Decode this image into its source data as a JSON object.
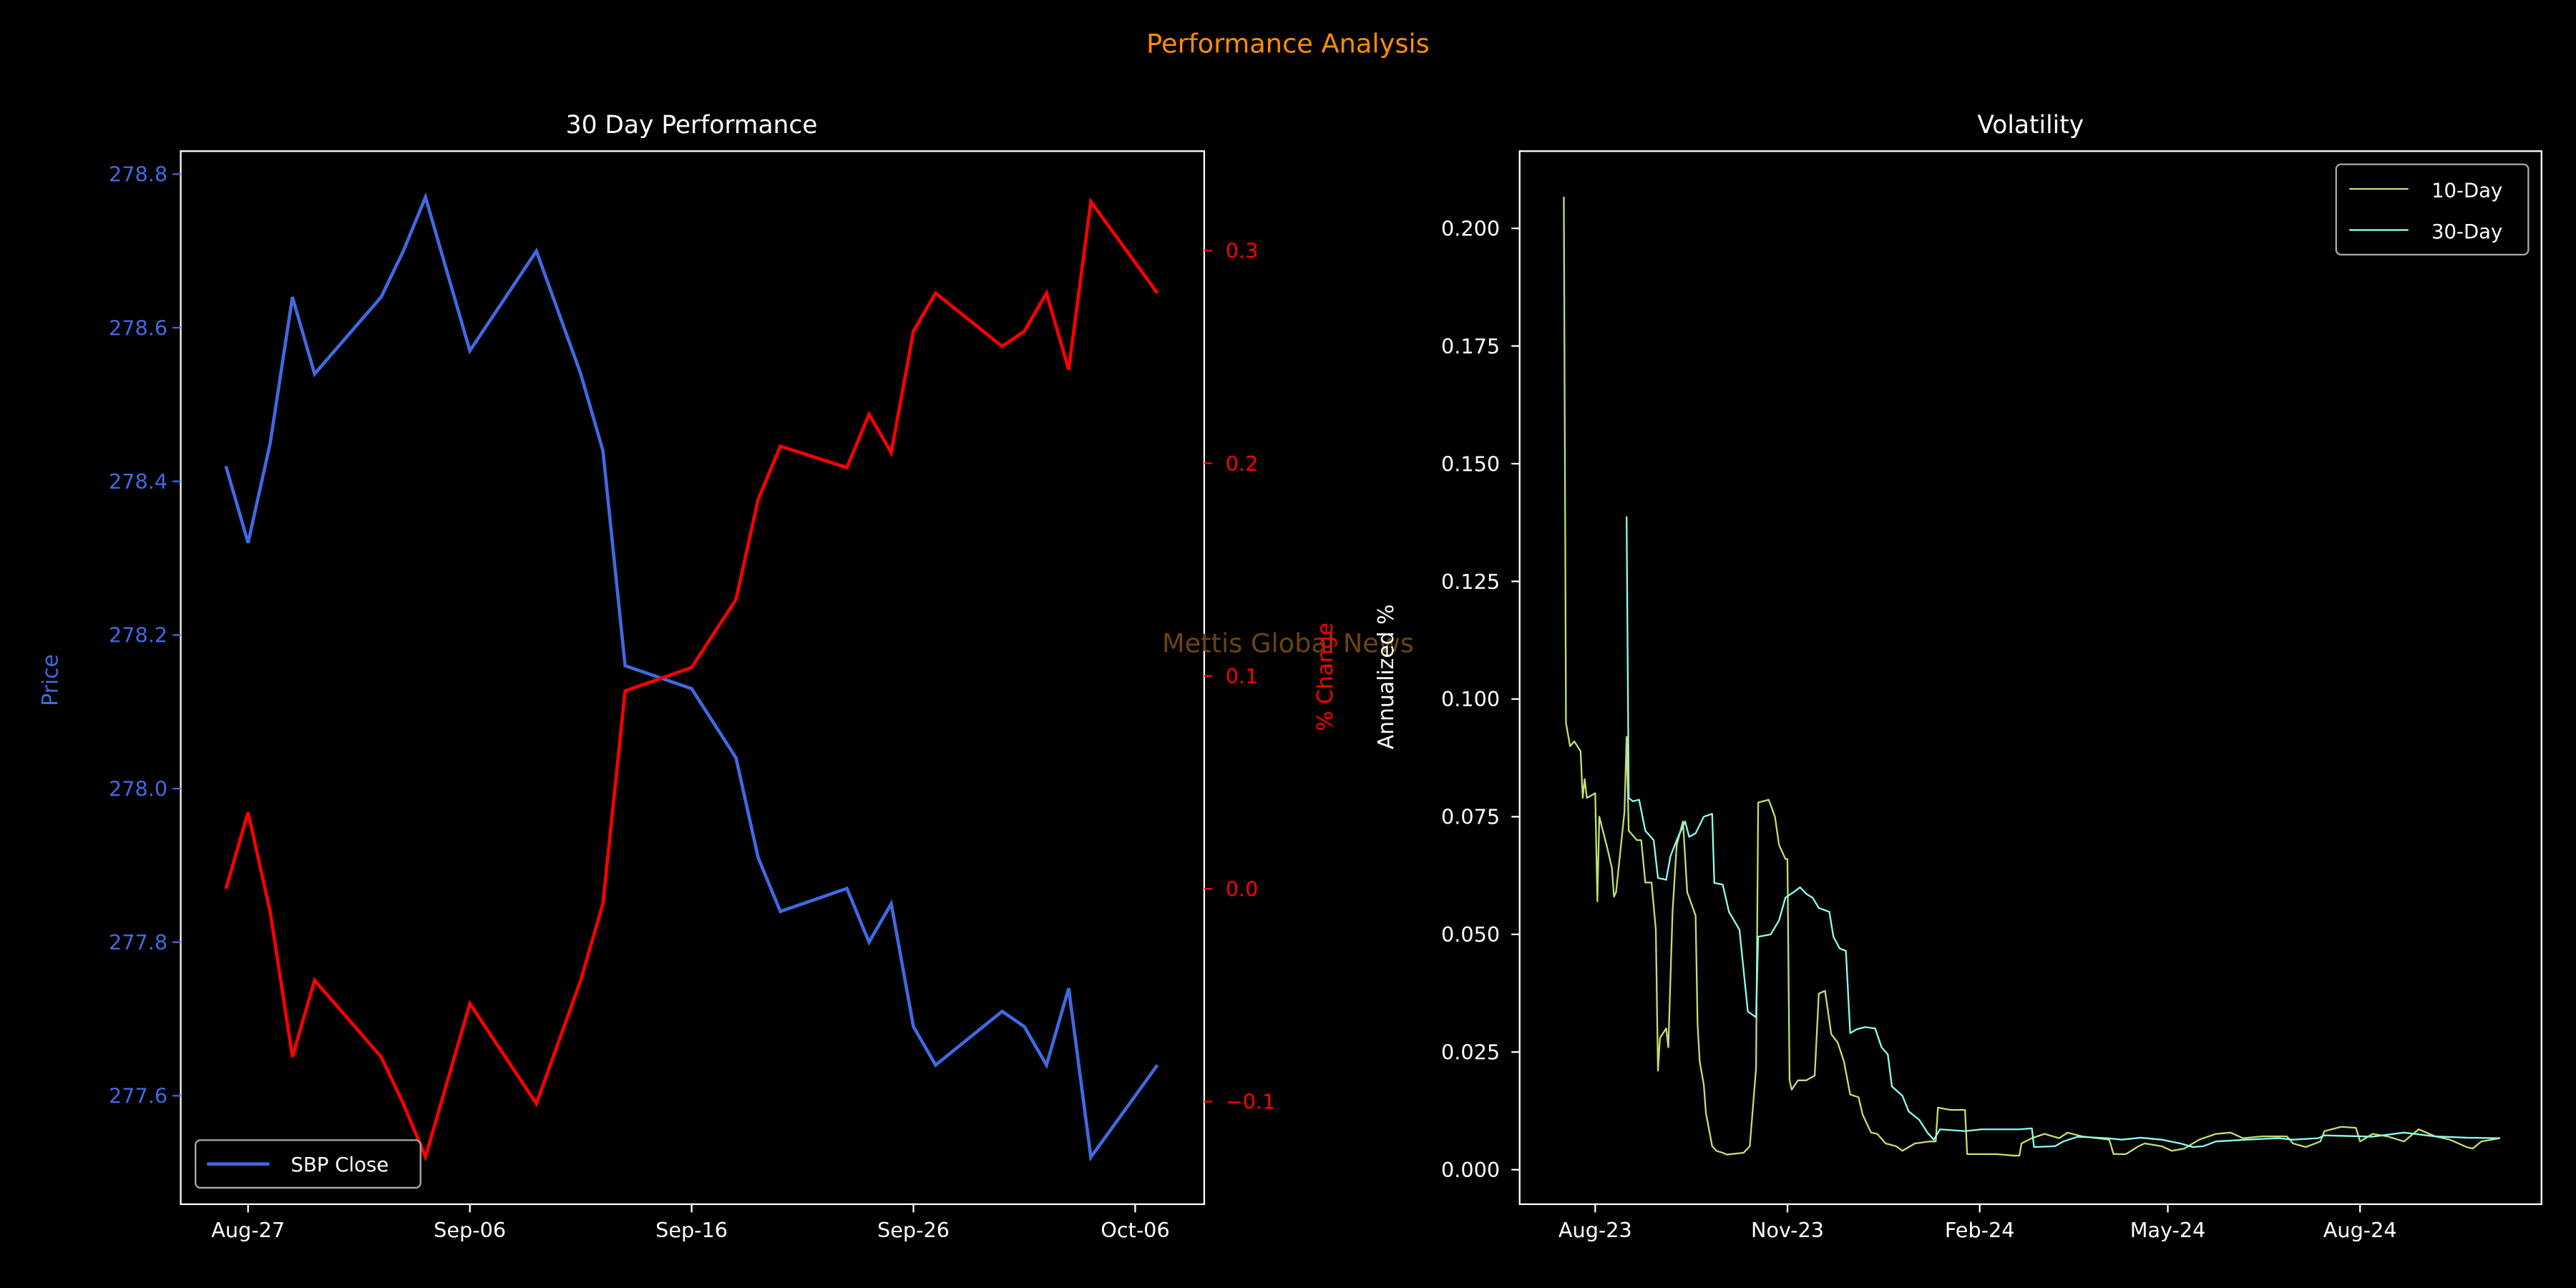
{
  "figure": {
    "suptitle": "Performance Analysis",
    "watermark": "Mettis Global News",
    "colors": {
      "title": "#ff8c00",
      "watermark": "#6b4410",
      "price": "#4169e1",
      "pct": "#ff0000",
      "vol10": "#c2e070",
      "vol30": "#8cfff0",
      "axes": "#ffffff"
    }
  },
  "chart_data": [
    {
      "type": "line",
      "title": "30 Day Performance",
      "xlabel": "",
      "ylabel": "Price",
      "y2label": "% Change",
      "x_ticks": [
        "Aug-27",
        "Sep-06",
        "Sep-16",
        "Sep-26",
        "Oct-06"
      ],
      "x_tick_dates": [
        "2024-08-27",
        "2024-09-06",
        "2024-09-16",
        "2024-09-26",
        "2024-10-06"
      ],
      "y_ticks": [
        277.6,
        277.8,
        278.0,
        278.2,
        278.4,
        278.6,
        278.8
      ],
      "y_tick_labels": [
        "277.6",
        "277.8",
        "278.0",
        "278.2",
        "278.4",
        "278.6",
        "278.8"
      ],
      "y2_ticks": [
        -0.1,
        0.0,
        0.1,
        0.2,
        0.3
      ],
      "y2_tick_labels": [
        "−0.1",
        "0.0",
        "0.1",
        "0.2",
        "0.3"
      ],
      "legend": {
        "placement": "lower-left",
        "entries": [
          "SBP Close"
        ]
      },
      "x": [
        "2024-08-26",
        "2024-08-27",
        "2024-08-28",
        "2024-08-29",
        "2024-08-30",
        "2024-09-02",
        "2024-09-03",
        "2024-09-04",
        "2024-09-05",
        "2024-09-06",
        "2024-09-09",
        "2024-09-10",
        "2024-09-11",
        "2024-09-12",
        "2024-09-13",
        "2024-09-16",
        "2024-09-18",
        "2024-09-19",
        "2024-09-20",
        "2024-09-23",
        "2024-09-24",
        "2024-09-25",
        "2024-09-26",
        "2024-09-27",
        "2024-09-30",
        "2024-10-01",
        "2024-10-02",
        "2024-10-03",
        "2024-10-04",
        "2024-10-07"
      ],
      "series": [
        {
          "name": "SBP Close",
          "axis": "left",
          "values": [
            278.42,
            278.32,
            278.45,
            278.64,
            278.54,
            278.64,
            278.7,
            278.77,
            278.67,
            278.57,
            278.7,
            278.62,
            278.54,
            278.44,
            278.16,
            278.13,
            278.04,
            277.91,
            277.84,
            277.87,
            277.8,
            277.85,
            277.69,
            277.64,
            277.71,
            277.69,
            277.64,
            277.74,
            277.52,
            277.64
          ]
        },
        {
          "name": "% Change",
          "axis": "right",
          "values": [
            0.0,
            0.036,
            -0.011,
            -0.079,
            -0.043,
            -0.079,
            -0.101,
            -0.126,
            -0.09,
            -0.054,
            -0.101,
            -0.072,
            -0.043,
            -0.007,
            0.093,
            0.104,
            0.136,
            0.183,
            0.208,
            0.198,
            0.223,
            0.205,
            0.262,
            0.28,
            0.255,
            0.262,
            0.28,
            0.244,
            0.323,
            0.28
          ]
        }
      ]
    },
    {
      "type": "line",
      "title": "Volatility",
      "xlabel": "",
      "ylabel": "Annualized %",
      "x_unit": "days since 2023-08-01",
      "x_ticks": [
        "Aug-23",
        "Nov-23",
        "Feb-24",
        "May-24",
        "Aug-24"
      ],
      "x_tick_values": [
        0,
        92,
        184,
        274,
        366
      ],
      "y_ticks": [
        0,
        0.025,
        0.05,
        0.075,
        0.1,
        0.125,
        0.15,
        0.175,
        0.2
      ],
      "y_tick_labels": [
        "0.000",
        "0.025",
        "0.050",
        "0.075",
        "0.100",
        "0.125",
        "0.150",
        "0.175",
        "0.200"
      ],
      "legend": {
        "placement": "top-right",
        "entries": [
          "10-Day",
          "30-Day"
        ]
      },
      "series": [
        {
          "name": "10-Day",
          "x": [
            -15,
            -14,
            -12,
            -10,
            -7,
            -6,
            -5,
            -4,
            0,
            1,
            2,
            6,
            8,
            9,
            10,
            14,
            15,
            16,
            20,
            22,
            24,
            27,
            29,
            30,
            31,
            34,
            35,
            37,
            39,
            42,
            44,
            48,
            49,
            50,
            52,
            53,
            56,
            58,
            61,
            63,
            71,
            74,
            77,
            78,
            83,
            86,
            88,
            91,
            92,
            93,
            94,
            97,
            101,
            105,
            107,
            110,
            113,
            116,
            119,
            122,
            126,
            128,
            132,
            135,
            139,
            144,
            147,
            153,
            160,
            163,
            164,
            170,
            177,
            178,
            183,
            192,
            200,
            203,
            204,
            209,
            215,
            222,
            226,
            233,
            246,
            248,
            254,
            260,
            263,
            271,
            276,
            282,
            289,
            297,
            304,
            310,
            319,
            331,
            334,
            340,
            347,
            349,
            357,
            364,
            366,
            372,
            379,
            387,
            394,
            402,
            409,
            417,
            420,
            424,
            433
          ],
          "values": [
            0.2067,
            0.0949,
            0.09,
            0.091,
            0.0889,
            0.079,
            0.083,
            0.079,
            0.08,
            0.057,
            0.075,
            0.068,
            0.064,
            0.058,
            0.059,
            0.076,
            0.092,
            0.072,
            0.07,
            0.07,
            0.061,
            0.061,
            0.051,
            0.021,
            0.028,
            0.03,
            0.026,
            0.055,
            0.069,
            0.074,
            0.059,
            0.054,
            0.031,
            0.023,
            0.018,
            0.012,
            0.005,
            0.004,
            0.0036,
            0.0032,
            0.0036,
            0.005,
            0.0215,
            0.078,
            0.0786,
            0.075,
            0.069,
            0.066,
            0.066,
            0.019,
            0.017,
            0.019,
            0.019,
            0.02,
            0.0374,
            0.038,
            0.0288,
            0.027,
            0.023,
            0.016,
            0.0154,
            0.0117,
            0.0079,
            0.0076,
            0.0056,
            0.005,
            0.004,
            0.0056,
            0.006,
            0.006,
            0.0132,
            0.0127,
            0.0127,
            0.0033,
            0.0033,
            0.0033,
            0.003,
            0.003,
            0.0056,
            0.0067,
            0.0076,
            0.0067,
            0.0079,
            0.0071,
            0.0064,
            0.0033,
            0.0033,
            0.005,
            0.0056,
            0.005,
            0.004,
            0.0045,
            0.0064,
            0.0076,
            0.0079,
            0.0067,
            0.0071,
            0.0071,
            0.0056,
            0.0048,
            0.006,
            0.0082,
            0.0091,
            0.0089,
            0.006,
            0.0076,
            0.0071,
            0.006,
            0.0086,
            0.0071,
            0.0064,
            0.0048,
            0.0045,
            0.006,
            0.0067
          ]
        },
        {
          "name": "30-Day",
          "x": [
            15,
            16,
            18,
            21,
            24,
            28,
            30,
            34,
            36,
            39,
            43,
            45,
            48,
            52,
            56,
            57,
            61,
            64,
            69,
            73,
            77,
            78,
            84,
            88,
            91,
            95,
            98,
            101,
            104,
            107,
            112,
            114,
            117,
            120,
            122,
            125,
            129,
            134,
            137,
            140,
            142,
            147,
            150,
            155,
            159,
            162,
            165,
            177,
            185,
            203,
            209,
            210,
            220,
            224,
            231,
            245,
            252,
            261,
            271,
            280,
            286,
            291,
            297,
            312,
            327,
            334,
            346,
            349,
            372,
            387,
            402,
            417,
            433
          ],
          "values": [
            0.1388,
            0.079,
            0.0783,
            0.0786,
            0.072,
            0.07,
            0.062,
            0.0616,
            0.0666,
            0.07,
            0.074,
            0.0707,
            0.0715,
            0.075,
            0.0756,
            0.0609,
            0.0606,
            0.0548,
            0.051,
            0.0336,
            0.0324,
            0.0495,
            0.05,
            0.053,
            0.0578,
            0.059,
            0.06,
            0.0586,
            0.0578,
            0.0556,
            0.0548,
            0.0495,
            0.047,
            0.0465,
            0.029,
            0.0298,
            0.0303,
            0.03,
            0.026,
            0.0245,
            0.0177,
            0.0157,
            0.0124,
            0.0106,
            0.0079,
            0.0064,
            0.0086,
            0.0082,
            0.0086,
            0.0086,
            0.0088,
            0.0048,
            0.005,
            0.006,
            0.007,
            0.0067,
            0.0064,
            0.0068,
            0.0064,
            0.0056,
            0.0048,
            0.005,
            0.006,
            0.0064,
            0.0067,
            0.0064,
            0.0067,
            0.0073,
            0.007,
            0.0079,
            0.0071,
            0.0068,
            0.0067
          ]
        }
      ]
    }
  ]
}
